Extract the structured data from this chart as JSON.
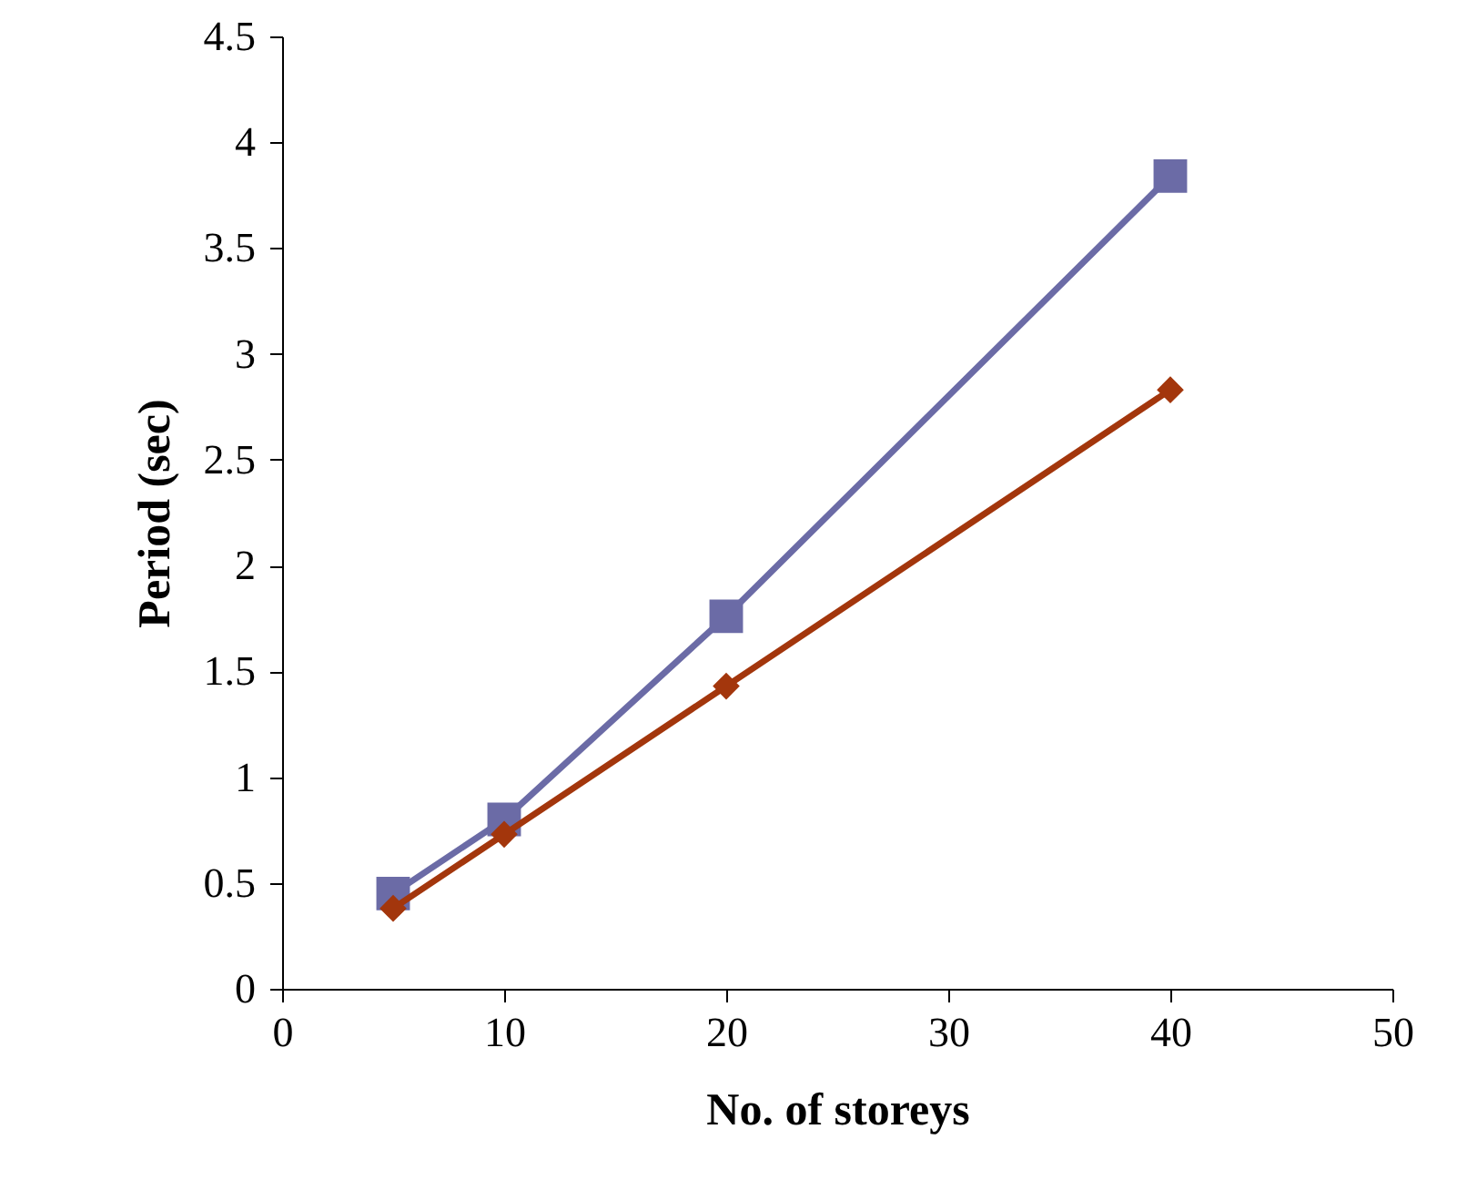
{
  "chart_data": {
    "type": "line",
    "xlabel": "No. of storeys",
    "ylabel": "Period (sec)",
    "x": [
      5,
      10,
      20,
      40
    ],
    "series": [
      {
        "color": "#6b6ba6",
        "marker": "square",
        "values": [
          0.45,
          0.8,
          1.76,
          3.84
        ]
      },
      {
        "color": "#a3360c",
        "marker": "diamond",
        "values": [
          0.38,
          0.73,
          1.43,
          2.83
        ]
      }
    ],
    "xlim": [
      0,
      50
    ],
    "xticks": [
      0,
      10,
      20,
      30,
      40,
      50
    ],
    "ylim": [
      0,
      4.5
    ],
    "yticks": [
      0,
      0.5,
      1,
      1.5,
      2,
      2.5,
      3,
      3.5,
      4,
      4.5
    ],
    "grid": false,
    "line_style": "solid"
  }
}
